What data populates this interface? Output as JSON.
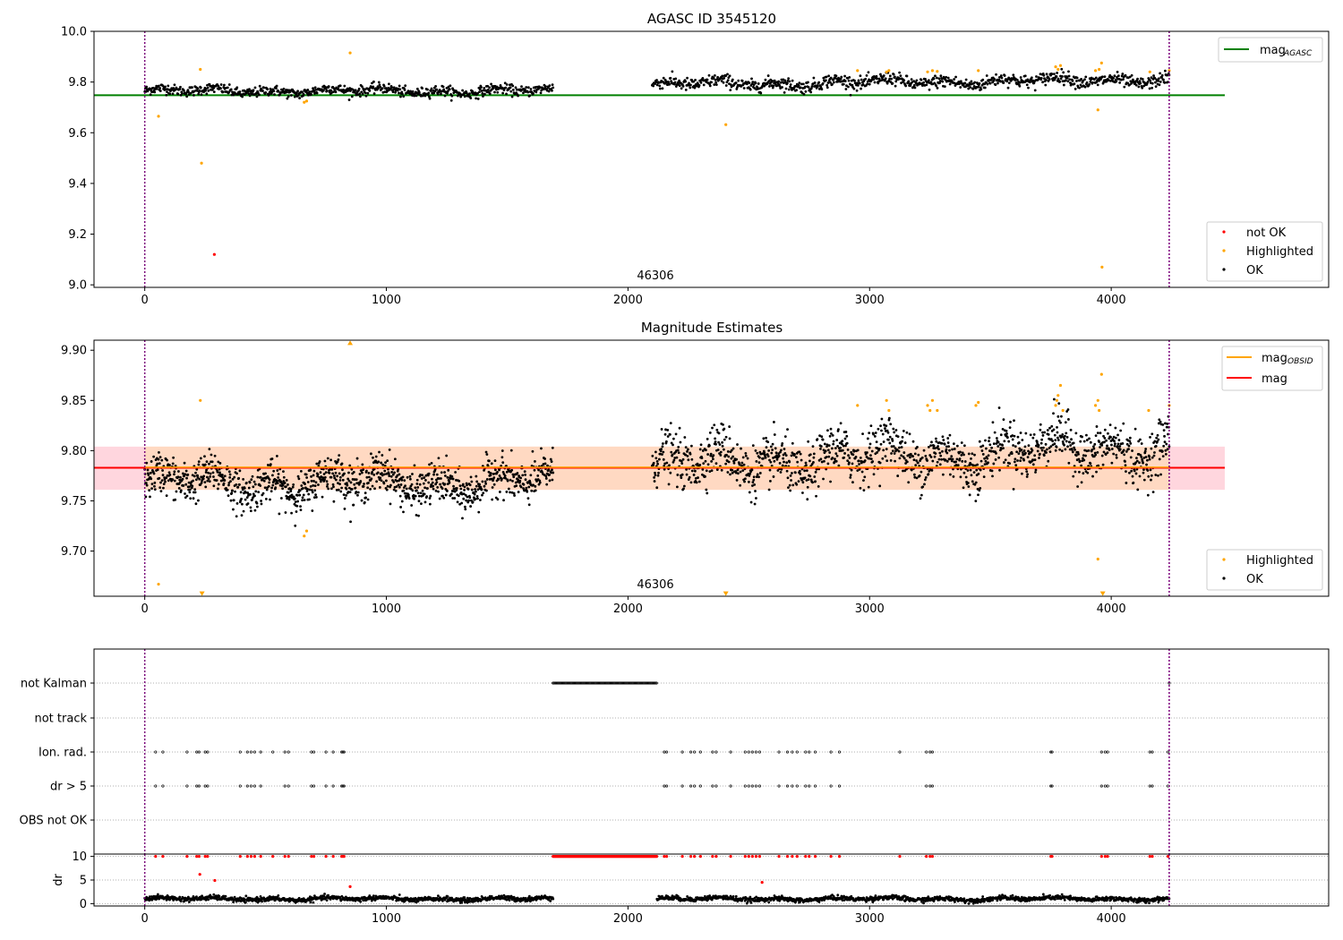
{
  "chart_data": [
    {
      "id": "agasc",
      "type": "scatter",
      "title": "AGASC ID 3545120",
      "xlim": [
        -210,
        4900
      ],
      "ylim": [
        8.99,
        10.0
      ],
      "xticks": [
        0,
        1000,
        2000,
        3000,
        4000
      ],
      "yticks": [
        9.0,
        9.2,
        9.4,
        9.6,
        9.8,
        10.0
      ],
      "yticklabels": [
        "9.0",
        "9.2",
        "9.4",
        "9.6",
        "9.8",
        "10.0"
      ],
      "obs_label": {
        "text": "46306",
        "x": 2040,
        "y": 9.035
      },
      "vlines": [
        0,
        4240
      ],
      "vline_color": "#7b007b",
      "hline": {
        "y": 9.748,
        "x_range": [
          -210,
          4470
        ],
        "color": "#008000"
      },
      "series": [
        {
          "name": "OK",
          "color": "#000000",
          "segments": [
            {
              "x_start": 0,
              "x_end": 1690,
              "base": 9.765,
              "trend": 0.0,
              "noise": 0.02,
              "n": 700
            },
            {
              "x_start": 2100,
              "x_end": 4240,
              "base": 9.79,
              "trend": 0.02,
              "noise": 0.025,
              "n": 900
            }
          ]
        },
        {
          "name": "Highlighted",
          "color": "#ffa500",
          "points": [
            [
              57,
              9.665
            ],
            [
              230,
              9.85
            ],
            [
              235,
              9.48
            ],
            [
              660,
              9.72
            ],
            [
              670,
              9.725
            ],
            [
              850,
              9.915
            ],
            [
              2405,
              9.632
            ],
            [
              2950,
              9.845
            ],
            [
              3070,
              9.84
            ],
            [
              3080,
              9.845
            ],
            [
              3240,
              9.84
            ],
            [
              3260,
              9.845
            ],
            [
              3280,
              9.842
            ],
            [
              3450,
              9.845
            ],
            [
              3770,
              9.86
            ],
            [
              3780,
              9.85
            ],
            [
              3790,
              9.865
            ],
            [
              3935,
              9.845
            ],
            [
              3950,
              9.85
            ],
            [
              3960,
              9.875
            ],
            [
              3945,
              9.69
            ],
            [
              3962,
              9.07
            ],
            [
              4160,
              9.84
            ],
            [
              4240,
              9.845
            ]
          ]
        },
        {
          "name": "not OK",
          "color": "#ff0000",
          "points": [
            [
              288,
              9.12
            ]
          ]
        }
      ],
      "legend_upper": [
        {
          "label": "mag",
          "sub": "AGASC",
          "color": "#008000",
          "kind": "line"
        }
      ],
      "legend_lower": [
        {
          "label": "not OK",
          "color": "#ff0000",
          "kind": "dot"
        },
        {
          "label": "Highlighted",
          "color": "#ffa500",
          "kind": "dot"
        },
        {
          "label": "OK",
          "color": "#000000",
          "kind": "dot"
        }
      ]
    },
    {
      "id": "estimates",
      "type": "scatter",
      "title": "Magnitude Estimates",
      "xlim": [
        -210,
        4900
      ],
      "ylim": [
        9.655,
        9.91
      ],
      "xticks": [
        0,
        1000,
        2000,
        3000,
        4000
      ],
      "yticks": [
        9.7,
        9.75,
        9.8,
        9.85,
        9.9
      ],
      "yticklabels": [
        "9.70",
        "9.75",
        "9.80",
        "9.85",
        "9.90"
      ],
      "obs_label": {
        "text": "46306",
        "x": 2040,
        "y": 9.664
      },
      "vlines": [
        0,
        4240
      ],
      "vline_color": "#7b007b",
      "band_pink": {
        "y_range": [
          9.761,
          9.804
        ],
        "x_range": [
          -210,
          4470
        ],
        "color": "#ffd6de"
      },
      "band_orange": {
        "y_range": [
          9.761,
          9.804
        ],
        "x_range": [
          0,
          4240
        ],
        "color": "#ffd9c2"
      },
      "mag_line": {
        "y": 9.783,
        "x_range": [
          -210,
          4470
        ],
        "color": "#ff0000"
      },
      "obsid_line": {
        "y": 9.7835,
        "x_range": [
          0,
          4240
        ],
        "color": "#ffa500"
      },
      "series": [
        {
          "name": "OK",
          "color": "#000000",
          "segments": [
            {
              "x_start": 0,
              "x_end": 1690,
              "base": 9.768,
              "trend": 0.0,
              "noise": 0.02,
              "n": 1100
            },
            {
              "x_start": 2100,
              "x_end": 4240,
              "base": 9.785,
              "trend": 0.02,
              "noise": 0.025,
              "n": 1300
            }
          ]
        },
        {
          "name": "Highlighted",
          "color": "#ffa500",
          "points": [
            [
              57,
              9.667
            ],
            [
              230,
              9.85
            ],
            [
              660,
              9.715
            ],
            [
              670,
              9.72
            ],
            [
              2950,
              9.845
            ],
            [
              3070,
              9.85
            ],
            [
              3080,
              9.84
            ],
            [
              3240,
              9.845
            ],
            [
              3250,
              9.84
            ],
            [
              3260,
              9.85
            ],
            [
              3280,
              9.84
            ],
            [
              3440,
              9.845
            ],
            [
              3450,
              9.848
            ],
            [
              3770,
              9.845
            ],
            [
              3775,
              9.85
            ],
            [
              3780,
              9.855
            ],
            [
              3790,
              9.865
            ],
            [
              3800,
              9.84
            ],
            [
              3935,
              9.845
            ],
            [
              3945,
              9.85
            ],
            [
              3950,
              9.84
            ],
            [
              3960,
              9.876
            ],
            [
              3945,
              9.692
            ],
            [
              4155,
              9.84
            ],
            [
              4240,
              9.845
            ]
          ]
        },
        {
          "name": "Highlighted-offscale",
          "color": "#ffa500",
          "points": [
            [
              850,
              9.907
            ],
            [
              237,
              9.658
            ],
            [
              2405,
              9.658
            ],
            [
              3965,
              9.658
            ]
          ]
        }
      ],
      "legend_upper": [
        {
          "label": "mag",
          "sub": "OBSID",
          "color": "#ffa500",
          "kind": "line"
        },
        {
          "label": "mag",
          "sub": "",
          "color": "#ff0000",
          "kind": "line"
        }
      ],
      "legend_lower": [
        {
          "label": "Highlighted",
          "color": "#ffa500",
          "kind": "dot"
        },
        {
          "label": "OK",
          "color": "#000000",
          "kind": "dot"
        }
      ]
    },
    {
      "id": "flags",
      "type": "scatter",
      "xlim": [
        -210,
        4900
      ],
      "categories": [
        "not Kalman",
        "not track",
        "Ion. rad.",
        "dr > 5",
        "OBS not OK"
      ],
      "vlines": [
        0,
        4240
      ],
      "vline_color": "#7b007b",
      "flags": [
        {
          "row": "not Kalman",
          "runs": [
            [
              1690,
              2120
            ]
          ],
          "points": [
            4240
          ]
        },
        {
          "row": "not track",
          "runs": [],
          "points": []
        },
        {
          "row": "Ion. rad.",
          "runs": [],
          "points": [
            45,
            75,
            175,
            215,
            225,
            250,
            260,
            395,
            425,
            440,
            455,
            480,
            530,
            580,
            595,
            690,
            700,
            750,
            780,
            815,
            820,
            825,
            2150,
            2160,
            2225,
            2260,
            2275,
            2300,
            2350,
            2365,
            2425,
            2485,
            2500,
            2515,
            2530,
            2545,
            2625,
            2660,
            2680,
            2700,
            2735,
            2750,
            2775,
            2840,
            2875,
            3125,
            3235,
            3250,
            3260,
            3750,
            3755,
            3960,
            3975,
            3985,
            4160,
            4170,
            4235
          ]
        },
        {
          "row": "dr > 5",
          "runs": [],
          "points": [
            45,
            75,
            175,
            215,
            225,
            250,
            260,
            395,
            425,
            440,
            455,
            480,
            580,
            595,
            690,
            700,
            750,
            780,
            815,
            820,
            825,
            2150,
            2160,
            2225,
            2260,
            2275,
            2300,
            2350,
            2365,
            2425,
            2485,
            2500,
            2515,
            2530,
            2545,
            2625,
            2660,
            2680,
            2700,
            2735,
            2750,
            2775,
            2840,
            2875,
            3235,
            3250,
            3260,
            3750,
            3755,
            3960,
            3975,
            3985,
            4160,
            4170,
            4235
          ]
        },
        {
          "row": "OBS not OK",
          "runs": [],
          "points": []
        }
      ]
    },
    {
      "id": "dr",
      "type": "scatter",
      "ylabel": "dr",
      "xlim": [
        -210,
        4900
      ],
      "ylim": [
        -0.5,
        10.5
      ],
      "xticks": [
        0,
        1000,
        2000,
        3000,
        4000
      ],
      "yticks": [
        0,
        5,
        10
      ],
      "yticklabels": [
        "0",
        "5",
        "10"
      ],
      "vlines": [
        0,
        4240
      ],
      "vline_color": "#7b007b",
      "series": [
        {
          "name": "OK",
          "color": "#000000",
          "segments": [
            {
              "x_start": 0,
              "x_end": 1690,
              "base": 1.0,
              "trend": 0.0,
              "noise": 0.5,
              "n": 900
            },
            {
              "x_start": 2120,
              "x_end": 4240,
              "base": 1.0,
              "trend": 0.0,
              "noise": 0.5,
              "n": 1100
            }
          ]
        },
        {
          "name": "not OK",
          "color": "#ff0000",
          "points": [
            [
              228,
              6.2
            ],
            [
              290,
              4.9
            ],
            [
              850,
              3.6
            ],
            [
              2555,
              4.5
            ]
          ],
          "clipped_points": [
            45,
            75,
            175,
            215,
            225,
            250,
            260,
            395,
            425,
            440,
            455,
            480,
            530,
            580,
            595,
            690,
            700,
            750,
            780,
            815,
            820,
            825,
            2150,
            2160,
            2225,
            2260,
            2275,
            2300,
            2350,
            2365,
            2425,
            2485,
            2500,
            2515,
            2530,
            2545,
            2625,
            2660,
            2680,
            2700,
            2735,
            2750,
            2775,
            2840,
            2875,
            3125,
            3235,
            3250,
            3260,
            3750,
            3755,
            3960,
            3975,
            3985,
            4160,
            4170,
            4235
          ],
          "clipped_runs": [
            [
              1690,
              2120
            ]
          ],
          "clip_value": 10
        }
      ]
    }
  ]
}
